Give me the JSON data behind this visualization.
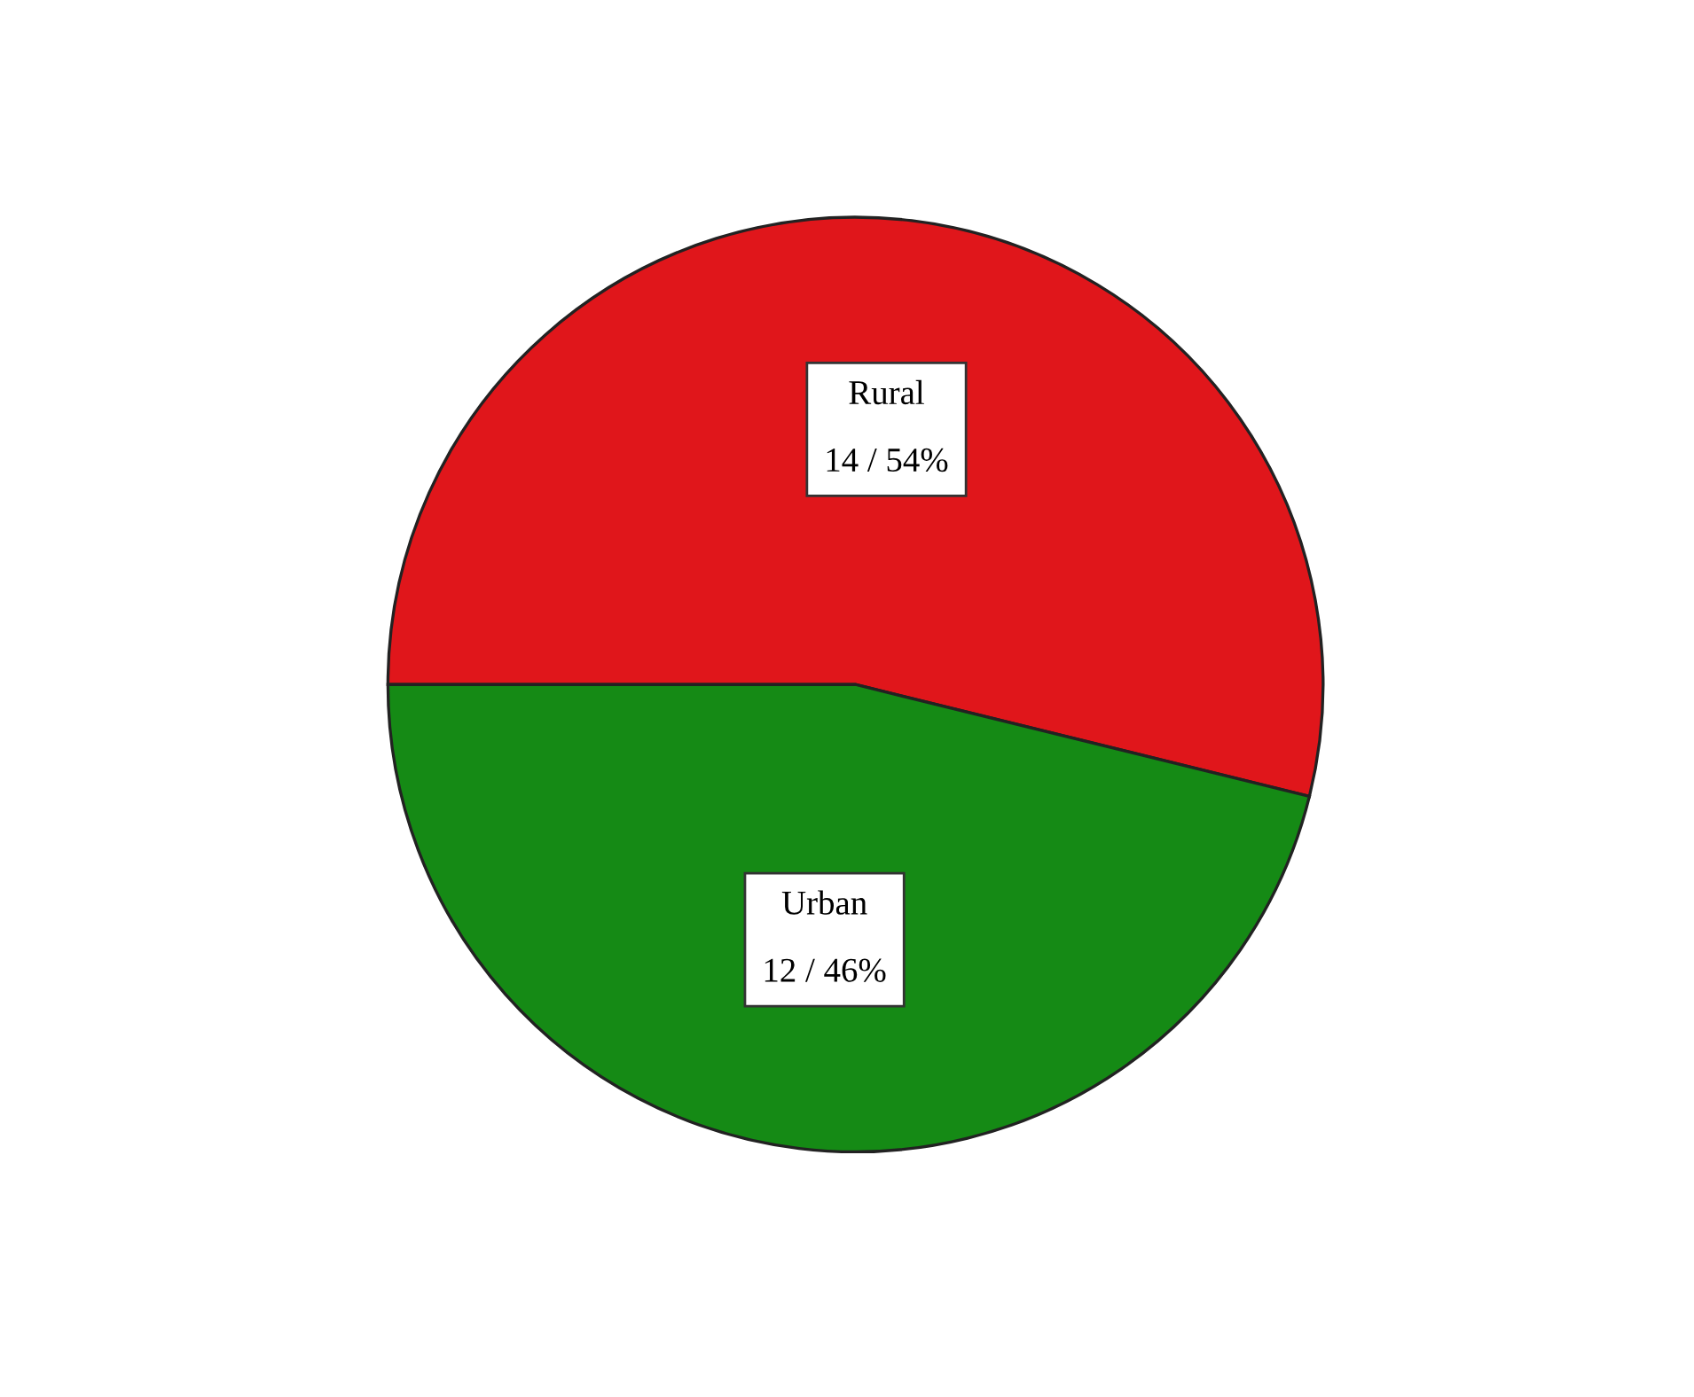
{
  "chart_data": {
    "type": "pie",
    "categories": [
      "Rural",
      "Urban"
    ],
    "values": [
      14,
      12
    ],
    "value_labels": [
      "14 / 54%",
      "12 / 46%"
    ],
    "colors": [
      "#e0161b",
      "#158a15"
    ]
  }
}
